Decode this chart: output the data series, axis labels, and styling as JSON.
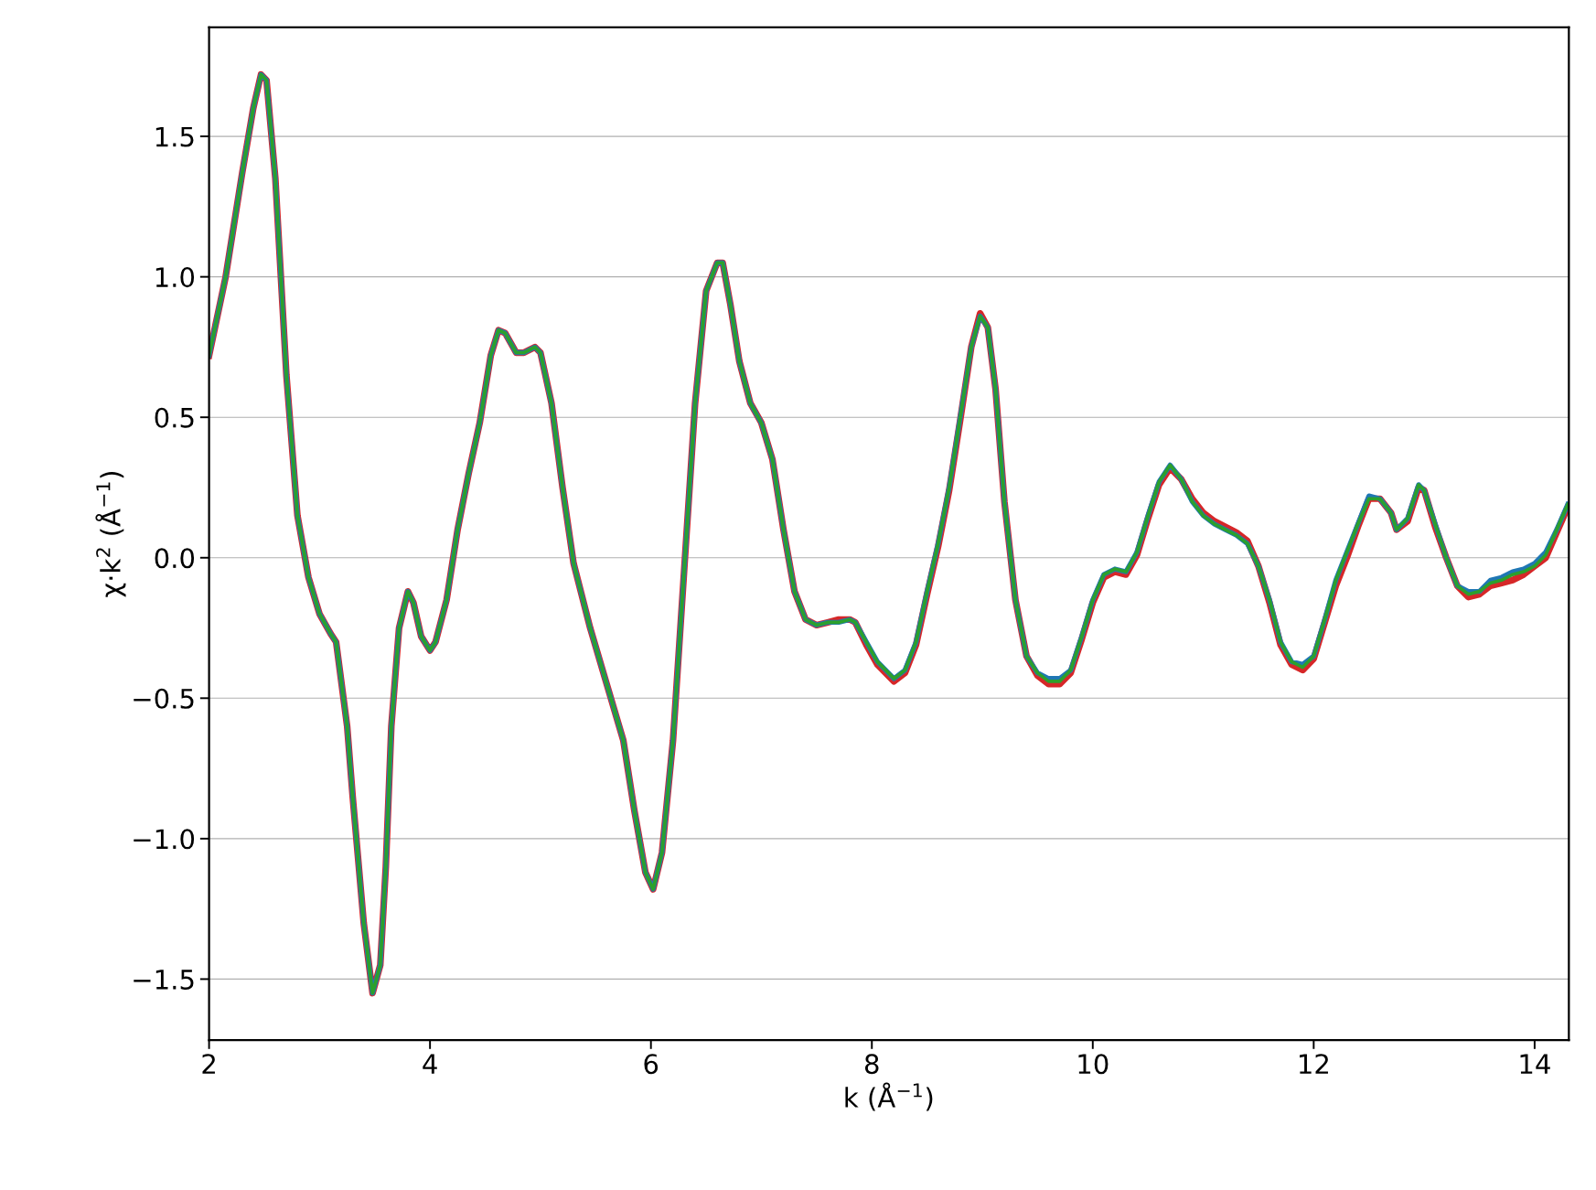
{
  "chart_data": {
    "type": "line",
    "xlabel": "k (Å$^{−1}$)",
    "ylabel": "χ·k$^{2}$ (Å$^{−1}$)",
    "x": [
      2.0,
      2.15,
      2.3,
      2.4,
      2.47,
      2.52,
      2.6,
      2.7,
      2.8,
      2.9,
      3.0,
      3.1,
      3.15,
      3.2,
      3.25,
      3.3,
      3.4,
      3.48,
      3.55,
      3.6,
      3.65,
      3.72,
      3.8,
      3.85,
      3.92,
      4.0,
      4.05,
      4.15,
      4.25,
      4.35,
      4.45,
      4.55,
      4.62,
      4.68,
      4.78,
      4.85,
      4.95,
      5.0,
      5.1,
      5.2,
      5.3,
      5.45,
      5.6,
      5.75,
      5.85,
      5.95,
      6.02,
      6.1,
      6.2,
      6.3,
      6.4,
      6.5,
      6.6,
      6.65,
      6.72,
      6.8,
      6.9,
      7.0,
      7.1,
      7.2,
      7.3,
      7.4,
      7.5,
      7.6,
      7.7,
      7.8,
      7.85,
      7.95,
      8.05,
      8.2,
      8.3,
      8.4,
      8.5,
      8.6,
      8.7,
      8.8,
      8.9,
      8.98,
      9.05,
      9.12,
      9.2,
      9.3,
      9.4,
      9.5,
      9.6,
      9.7,
      9.8,
      9.9,
      10.0,
      10.1,
      10.2,
      10.3,
      10.4,
      10.5,
      10.6,
      10.7,
      10.8,
      10.9,
      11.0,
      11.1,
      11.2,
      11.3,
      11.4,
      11.5,
      11.6,
      11.7,
      11.8,
      11.9,
      12.0,
      12.1,
      12.2,
      12.3,
      12.4,
      12.5,
      12.6,
      12.7,
      12.75,
      12.85,
      12.95,
      13.0,
      13.1,
      13.2,
      13.3,
      13.4,
      13.5,
      13.6,
      13.7,
      13.8,
      13.9,
      14.0,
      14.1,
      14.2,
      14.3
    ],
    "series": [
      {
        "color": "#d62728",
        "values": [
          0.72,
          1.0,
          1.37,
          1.6,
          1.72,
          1.7,
          1.35,
          0.65,
          0.15,
          -0.07,
          -0.2,
          -0.27,
          -0.3,
          -0.45,
          -0.6,
          -0.85,
          -1.3,
          -1.55,
          -1.45,
          -1.1,
          -0.6,
          -0.25,
          -0.12,
          -0.16,
          -0.28,
          -0.33,
          -0.3,
          -0.15,
          0.1,
          0.3,
          0.48,
          0.72,
          0.81,
          0.8,
          0.73,
          0.73,
          0.75,
          0.73,
          0.55,
          0.25,
          -0.02,
          -0.25,
          -0.45,
          -0.65,
          -0.9,
          -1.12,
          -1.18,
          -1.05,
          -0.65,
          -0.05,
          0.55,
          0.95,
          1.05,
          1.05,
          0.9,
          0.7,
          0.55,
          0.48,
          0.35,
          0.1,
          -0.12,
          -0.22,
          -0.24,
          -0.23,
          -0.22,
          -0.22,
          -0.23,
          -0.31,
          -0.38,
          -0.44,
          -0.41,
          -0.31,
          -0.13,
          0.04,
          0.24,
          0.49,
          0.75,
          0.87,
          0.82,
          0.6,
          0.2,
          -0.15,
          -0.35,
          -0.42,
          -0.45,
          -0.45,
          -0.41,
          -0.29,
          -0.16,
          -0.07,
          -0.05,
          -0.06,
          0.01,
          0.14,
          0.26,
          0.32,
          0.28,
          0.21,
          0.16,
          0.13,
          0.11,
          0.09,
          0.06,
          -0.03,
          -0.16,
          -0.31,
          -0.38,
          -0.4,
          -0.36,
          -0.23,
          -0.1,
          0.0,
          0.11,
          0.21,
          0.21,
          0.16,
          0.1,
          0.13,
          0.25,
          0.24,
          0.11,
          0.0,
          -0.1,
          -0.14,
          -0.13,
          -0.1,
          -0.09,
          -0.08,
          -0.06,
          -0.03,
          0.0,
          0.09,
          0.18
        ]
      },
      {
        "color": "#1f77b4",
        "values": [
          0.72,
          1.0,
          1.37,
          1.6,
          1.72,
          1.7,
          1.35,
          0.65,
          0.15,
          -0.07,
          -0.2,
          -0.27,
          -0.3,
          -0.45,
          -0.6,
          -0.85,
          -1.3,
          -1.55,
          -1.45,
          -1.1,
          -0.6,
          -0.25,
          -0.12,
          -0.16,
          -0.28,
          -0.33,
          -0.3,
          -0.15,
          0.1,
          0.3,
          0.48,
          0.72,
          0.81,
          0.8,
          0.73,
          0.73,
          0.75,
          0.73,
          0.55,
          0.25,
          -0.02,
          -0.25,
          -0.45,
          -0.65,
          -0.9,
          -1.12,
          -1.18,
          -1.05,
          -0.65,
          -0.05,
          0.55,
          0.95,
          1.05,
          1.05,
          0.9,
          0.7,
          0.55,
          0.48,
          0.35,
          0.1,
          -0.12,
          -0.22,
          -0.24,
          -0.23,
          -0.23,
          -0.22,
          -0.23,
          -0.3,
          -0.37,
          -0.43,
          -0.4,
          -0.3,
          -0.12,
          0.05,
          0.25,
          0.5,
          0.75,
          0.86,
          0.82,
          0.6,
          0.2,
          -0.15,
          -0.35,
          -0.41,
          -0.43,
          -0.43,
          -0.4,
          -0.28,
          -0.15,
          -0.06,
          -0.04,
          -0.05,
          0.02,
          0.15,
          0.27,
          0.33,
          0.28,
          0.2,
          0.15,
          0.12,
          0.1,
          0.08,
          0.05,
          -0.03,
          -0.15,
          -0.3,
          -0.37,
          -0.38,
          -0.35,
          -0.22,
          -0.08,
          0.02,
          0.12,
          0.22,
          0.21,
          0.16,
          0.1,
          0.14,
          0.26,
          0.24,
          0.12,
          0.0,
          -0.1,
          -0.12,
          -0.12,
          -0.08,
          -0.07,
          -0.05,
          -0.04,
          -0.02,
          0.02,
          0.1,
          0.19
        ]
      },
      {
        "color": "#2ca02c",
        "values": [
          0.72,
          1.0,
          1.37,
          1.6,
          1.72,
          1.7,
          1.35,
          0.65,
          0.15,
          -0.07,
          -0.2,
          -0.27,
          -0.3,
          -0.45,
          -0.6,
          -0.85,
          -1.3,
          -1.55,
          -1.45,
          -1.1,
          -0.6,
          -0.25,
          -0.12,
          -0.16,
          -0.28,
          -0.33,
          -0.3,
          -0.15,
          0.1,
          0.3,
          0.48,
          0.72,
          0.81,
          0.8,
          0.73,
          0.73,
          0.75,
          0.73,
          0.55,
          0.25,
          -0.02,
          -0.25,
          -0.45,
          -0.65,
          -0.9,
          -1.12,
          -1.18,
          -1.05,
          -0.65,
          -0.05,
          0.55,
          0.95,
          1.05,
          1.05,
          0.9,
          0.7,
          0.55,
          0.48,
          0.35,
          0.1,
          -0.12,
          -0.22,
          -0.24,
          -0.23,
          -0.23,
          -0.22,
          -0.23,
          -0.3,
          -0.37,
          -0.43,
          -0.4,
          -0.3,
          -0.12,
          0.05,
          0.25,
          0.5,
          0.75,
          0.86,
          0.82,
          0.6,
          0.2,
          -0.15,
          -0.35,
          -0.41,
          -0.44,
          -0.44,
          -0.4,
          -0.28,
          -0.15,
          -0.06,
          -0.04,
          -0.05,
          0.02,
          0.15,
          0.27,
          0.33,
          0.28,
          0.2,
          0.15,
          0.12,
          0.1,
          0.08,
          0.05,
          -0.03,
          -0.15,
          -0.3,
          -0.37,
          -0.39,
          -0.35,
          -0.22,
          -0.08,
          0.02,
          0.12,
          0.21,
          0.21,
          0.16,
          0.1,
          0.14,
          0.26,
          0.24,
          0.12,
          0.0,
          -0.1,
          -0.13,
          -0.12,
          -0.09,
          -0.08,
          -0.06,
          -0.05,
          -0.03,
          0.01,
          0.1,
          0.19
        ]
      }
    ],
    "xlim": [
      2.0,
      14.31
    ],
    "ylim": [
      -1.717,
      1.888
    ],
    "xticks": [
      2,
      4,
      6,
      8,
      10,
      12,
      14
    ],
    "yticks": [
      {
        "value": -1.5,
        "label": "−1.5"
      },
      {
        "value": -1.0,
        "label": "−1.0"
      },
      {
        "value": -0.5,
        "label": "−0.5"
      },
      {
        "value": 0.0,
        "label": "0.0"
      },
      {
        "value": 0.5,
        "label": "0.5"
      },
      {
        "value": 1.0,
        "label": "1.0"
      },
      {
        "value": 1.5,
        "label": "1.5"
      }
    ],
    "grid": "y",
    "marker": "none",
    "line_style": "solid"
  }
}
